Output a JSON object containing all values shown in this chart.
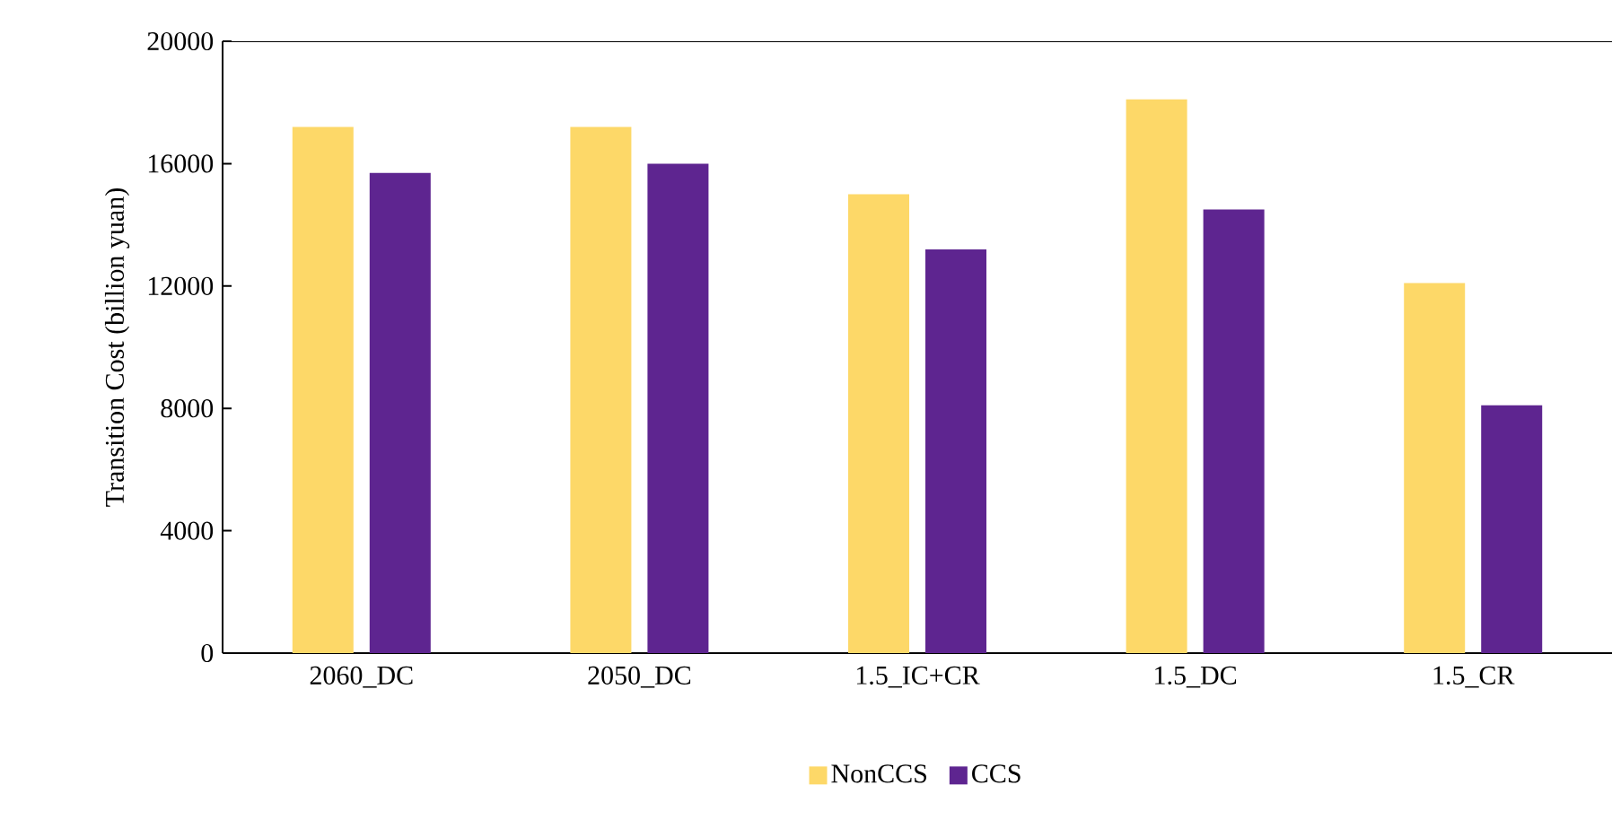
{
  "chart_data": {
    "type": "bar",
    "ylabel": "Transition Cost (billion yuan)",
    "categories": [
      "2060_DC",
      "2050_DC",
      "1.5_IC+CR",
      "1.5_DC",
      "1.5_CR"
    ],
    "series": [
      {
        "name": "NonCCS",
        "color": "#fdd868",
        "values": [
          17200,
          17200,
          15000,
          18100,
          12100
        ]
      },
      {
        "name": "CCS",
        "color": "#5e2590",
        "values": [
          15700,
          16000,
          13200,
          14500,
          8100
        ]
      }
    ],
    "ylim": [
      0,
      20000
    ],
    "yticks": [
      0,
      4000,
      8000,
      12000,
      16000,
      20000
    ],
    "grid": false,
    "legend": "bottom"
  }
}
